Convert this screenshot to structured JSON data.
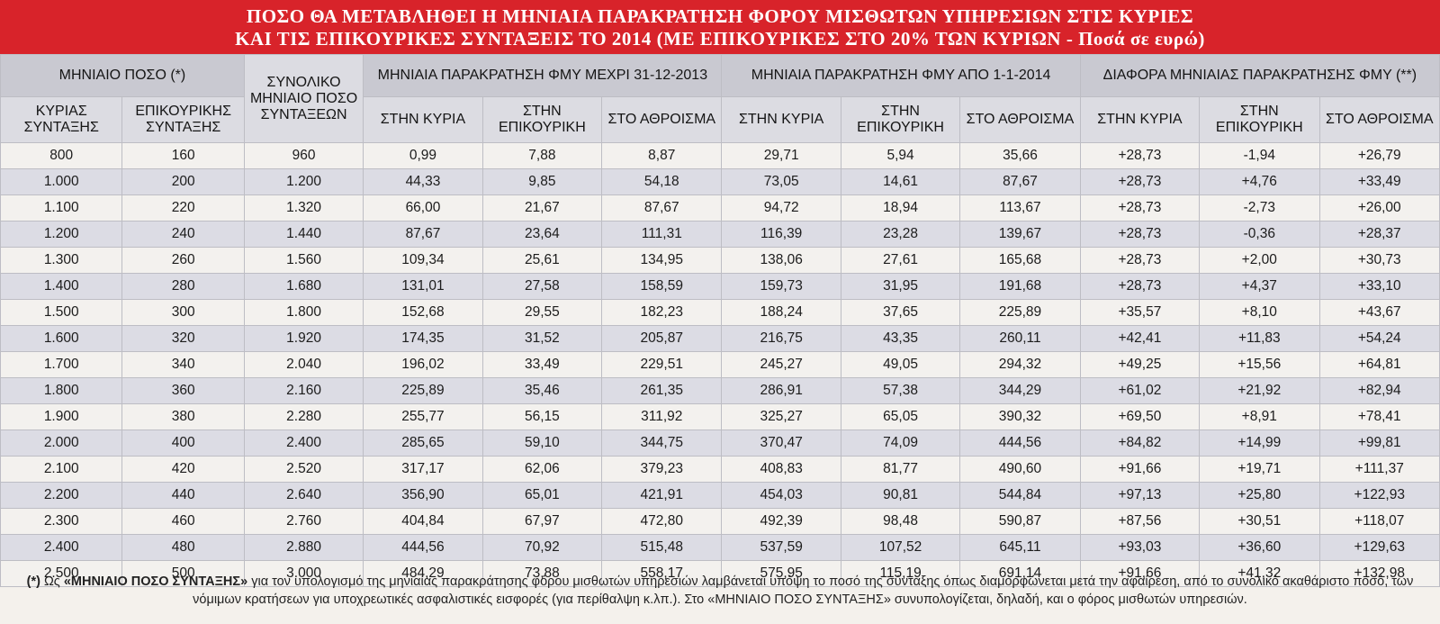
{
  "title": {
    "line1": "ΠΟΣΟ ΘΑ ΜΕΤΑΒΛΗΘΕΙ Η ΜΗΝΙΑΙΑ ΠΑΡΑΚΡΑΤΗΣΗ ΦΟΡΟΥ ΜΙΣΘΩΤΩΝ ΥΠΗΡΕΣΙΩΝ ΣΤΙΣ ΚΥΡΙΕΣ",
    "line2": "ΚΑΙ ΤΙΣ ΕΠΙΚΟΥΡΙΚΕΣ ΣΥΝΤΑΞΕΙΣ ΤΟ 2014  (ΜΕ ΕΠΙΚΟΥΡΙΚΕΣ ΣΤΟ 20% ΤΩΝ ΚΥΡΙΩΝ - Ποσά σε ευρώ)"
  },
  "header": {
    "group_monthly": "ΜΗΝΙΑΙΟ ΠΟΣΟ (*)",
    "col_main": "ΚΥΡΙΑΣ ΣΥΝΤΑΞΗΣ",
    "col_aux": "ΕΠΙΚΟΥΡΙΚΗΣ ΣΥΝΤΑΞΗΣ",
    "col_total": "ΣΥΝΟΛΙΚΟ ΜΗΝΙΑΙΟ ΠΟΣΟ ΣΥΝΤΑΞΕΩΝ",
    "group_2013": "ΜΗΝΙΑΙΑ ΠΑΡΑΚΡΑΤΗΣΗ ΦΜΥ ΜΕΧΡΙ 31-12-2013",
    "group_2014": "ΜΗΝΙΑΙΑ ΠΑΡΑΚΡΑΤΗΣΗ ΦΜΥ ΑΠΟ 1-1-2014",
    "group_diff": "ΔΙΑΦΟΡΑ ΜΗΝΙΑΙΑΣ ΠΑΡΑΚΡΑΤΗΣΗΣ ΦΜΥ (**)",
    "sub_main": "ΣΤΗΝ ΚΥΡΙΑ",
    "sub_aux": "ΣΤΗΝ ΕΠΙΚΟΥΡΙΚΗ",
    "sub_sum": "ΣΤΟ ΑΘΡΟΙΣΜΑ"
  },
  "rows": [
    [
      "800",
      "160",
      "960",
      "0,99",
      "7,88",
      "8,87",
      "29,71",
      "5,94",
      "35,66",
      "+28,73",
      "-1,94",
      "+26,79"
    ],
    [
      "1.000",
      "200",
      "1.200",
      "44,33",
      "9,85",
      "54,18",
      "73,05",
      "14,61",
      "87,67",
      "+28,73",
      "+4,76",
      "+33,49"
    ],
    [
      "1.100",
      "220",
      "1.320",
      "66,00",
      "21,67",
      "87,67",
      "94,72",
      "18,94",
      "113,67",
      "+28,73",
      "-2,73",
      "+26,00"
    ],
    [
      "1.200",
      "240",
      "1.440",
      "87,67",
      "23,64",
      "111,31",
      "116,39",
      "23,28",
      "139,67",
      "+28,73",
      "-0,36",
      "+28,37"
    ],
    [
      "1.300",
      "260",
      "1.560",
      "109,34",
      "25,61",
      "134,95",
      "138,06",
      "27,61",
      "165,68",
      "+28,73",
      "+2,00",
      "+30,73"
    ],
    [
      "1.400",
      "280",
      "1.680",
      "131,01",
      "27,58",
      "158,59",
      "159,73",
      "31,95",
      "191,68",
      "+28,73",
      "+4,37",
      "+33,10"
    ],
    [
      "1.500",
      "300",
      "1.800",
      "152,68",
      "29,55",
      "182,23",
      "188,24",
      "37,65",
      "225,89",
      "+35,57",
      "+8,10",
      "+43,67"
    ],
    [
      "1.600",
      "320",
      "1.920",
      "174,35",
      "31,52",
      "205,87",
      "216,75",
      "43,35",
      "260,11",
      "+42,41",
      "+11,83",
      "+54,24"
    ],
    [
      "1.700",
      "340",
      "2.040",
      "196,02",
      "33,49",
      "229,51",
      "245,27",
      "49,05",
      "294,32",
      "+49,25",
      "+15,56",
      "+64,81"
    ],
    [
      "1.800",
      "360",
      "2.160",
      "225,89",
      "35,46",
      "261,35",
      "286,91",
      "57,38",
      "344,29",
      "+61,02",
      "+21,92",
      "+82,94"
    ],
    [
      "1.900",
      "380",
      "2.280",
      "255,77",
      "56,15",
      "311,92",
      "325,27",
      "65,05",
      "390,32",
      "+69,50",
      "+8,91",
      "+78,41"
    ],
    [
      "2.000",
      "400",
      "2.400",
      "285,65",
      "59,10",
      "344,75",
      "370,47",
      "74,09",
      "444,56",
      "+84,82",
      "+14,99",
      "+99,81"
    ],
    [
      "2.100",
      "420",
      "2.520",
      "317,17",
      "62,06",
      "379,23",
      "408,83",
      "81,77",
      "490,60",
      "+91,66",
      "+19,71",
      "+111,37"
    ],
    [
      "2.200",
      "440",
      "2.640",
      "356,90",
      "65,01",
      "421,91",
      "454,03",
      "90,81",
      "544,84",
      "+97,13",
      "+25,80",
      "+122,93"
    ],
    [
      "2.300",
      "460",
      "2.760",
      "404,84",
      "67,97",
      "472,80",
      "492,39",
      "98,48",
      "590,87",
      "+87,56",
      "+30,51",
      "+118,07"
    ],
    [
      "2.400",
      "480",
      "2.880",
      "444,56",
      "70,92",
      "515,48",
      "537,59",
      "107,52",
      "645,11",
      "+93,03",
      "+36,60",
      "+129,63"
    ],
    [
      "2.500",
      "500",
      "3.000",
      "484,29",
      "73,88",
      "558,17",
      "575,95",
      "115,19",
      "691,14",
      "+91,66",
      "+41,32",
      "+132,98"
    ]
  ],
  "footnote": {
    "marker": "(*)",
    "text1": " Ως ",
    "term1": "«ΜΗΝΙΑΙΟ ΠΟΣΟ ΣΥΝΤΑΞΗΣ»",
    "text2": " για τον υπολογισμό της μηνιαίας παρακράτησης φόρου μισθωτών υπηρεσιών λαμβάνεται υπόψη το ποσό της σύνταξης όπως διαμορφώνεται μετά την αφαίρεση, από το συνολικό ακαθάριστο ποσό, των νόμιμων κρατήσεων για υποχρεωτικές ασφαλιστικές εισφορές (για περίθαλψη κ.λπ.). Στο ",
    "term2": "«ΜΗΝΙΑΙΟ ΠΟΣΟ ΣΥΝΤΑΞΗΣ»",
    "text3": " συνυπολογίζεται, δηλαδή, και ο φόρος μισθωτών υπηρεσιών."
  }
}
